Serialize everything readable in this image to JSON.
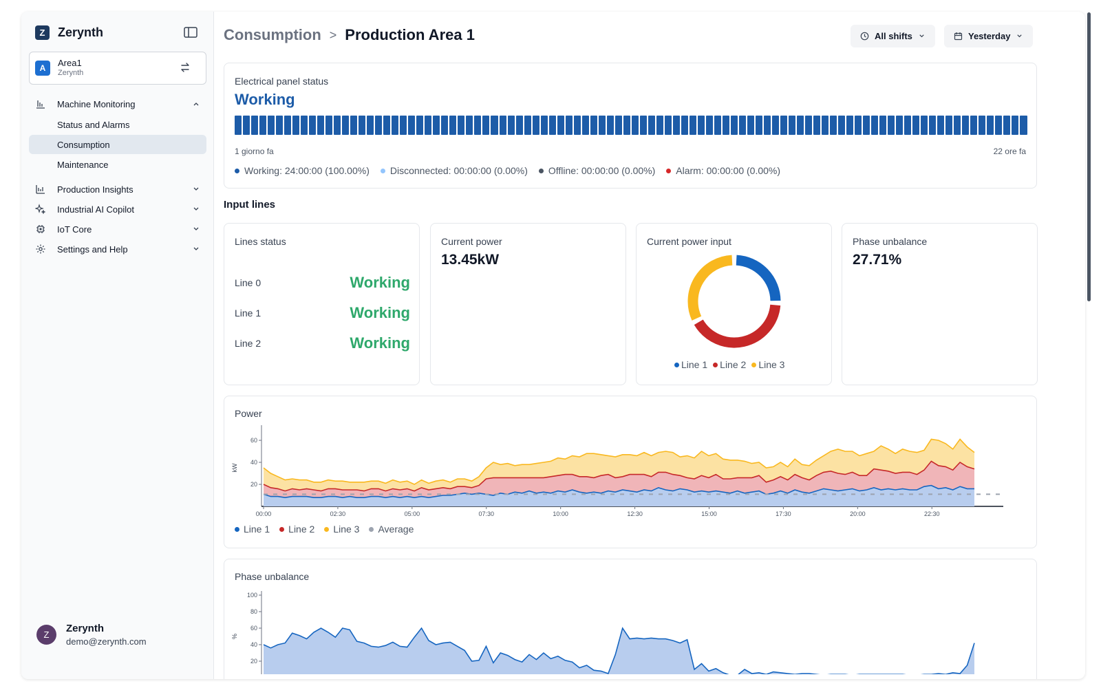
{
  "app": {
    "name": "Zerynth",
    "brand_letter": "Z"
  },
  "area": {
    "avatar": "A",
    "name": "Area1",
    "subtitle": "Zerynth"
  },
  "nav": {
    "machine_monitoring": "Machine Monitoring",
    "status_alarms": "Status and Alarms",
    "consumption": "Consumption",
    "maintenance": "Maintenance",
    "production_insights": "Production Insights",
    "industrial_ai": "Industrial AI Copilot",
    "iot_core": "IoT Core",
    "settings_help": "Settings and Help"
  },
  "user": {
    "initial": "Z",
    "name": "Zerynth",
    "email": "demo@zerynth.com"
  },
  "breadcrumb": {
    "parent": "Consumption",
    "separator": ">",
    "current": "Production Area 1"
  },
  "filters": {
    "shifts": "All shifts",
    "date": "Yesterday"
  },
  "panel": {
    "title": "Electrical panel status",
    "status": "Working",
    "from": "1 giorno fa",
    "to": "22 ore fa",
    "legend": [
      {
        "label": "Working: 24:00:00 (100.00%)",
        "color": "#1d5ca8"
      },
      {
        "label": "Disconnected: 00:00:00 (0.00%)",
        "color": "#93c5fd"
      },
      {
        "label": "Offline: 00:00:00 (0.00%)",
        "color": "#4b5563"
      },
      {
        "label": "Alarm: 00:00:00 (0.00%)",
        "color": "#d62728"
      }
    ]
  },
  "input_lines": {
    "title": "Input lines",
    "lines_status": {
      "title": "Lines status",
      "rows": [
        {
          "name": "Line 0",
          "status": "Working"
        },
        {
          "name": "Line 1",
          "status": "Working"
        },
        {
          "name": "Line 2",
          "status": "Working"
        }
      ]
    },
    "current_power": {
      "title": "Current power",
      "value": "13.45kW"
    },
    "current_power_input": {
      "title": "Current power input"
    },
    "phase_unbalance": {
      "title": "Phase unbalance",
      "value": "27.71%"
    }
  },
  "colors": {
    "line1": "#1565c0",
    "line2": "#c62828",
    "line3": "#f9b81f",
    "average": "#9ca3af"
  },
  "chart_data": [
    {
      "type": "pie",
      "title": "Current power input",
      "categories": [
        "Line 1",
        "Line 2",
        "Line 3"
      ],
      "values": [
        25.6,
        41.8,
        32.6
      ],
      "colors": [
        "#1565c0",
        "#c62828",
        "#f9b81f"
      ],
      "donut": true
    },
    {
      "type": "area",
      "title": "Power",
      "ylabel": "kW",
      "ylim": [
        0,
        70
      ],
      "yticks": [
        20,
        40,
        60
      ],
      "xticks": [
        "00:00",
        "02:30",
        "05:00",
        "07:30",
        "10:00",
        "12:30",
        "15:00",
        "17:30",
        "20:00",
        "22:30"
      ],
      "stacked": true,
      "series": [
        {
          "name": "Line 1",
          "color": "#1565c0",
          "values": [
            11,
            9,
            9,
            8,
            9,
            9,
            9,
            8,
            8,
            9,
            9,
            8,
            9,
            8,
            8,
            9,
            9,
            8,
            9,
            8,
            9,
            8,
            9,
            8,
            9,
            10,
            10,
            11,
            12,
            11,
            12,
            11,
            10,
            12,
            11,
            13,
            12,
            14,
            12,
            13,
            12,
            14,
            13,
            15,
            13,
            12,
            13,
            12,
            14,
            13,
            15,
            14,
            13,
            15,
            14,
            17,
            15,
            14,
            16,
            15,
            13,
            14,
            13,
            14,
            13,
            12,
            14,
            12,
            13,
            14,
            11,
            12,
            14,
            12,
            15,
            13,
            12,
            14,
            16,
            15,
            14,
            15,
            16,
            14,
            15,
            17,
            15,
            16,
            15,
            16,
            15,
            15,
            18,
            19,
            16,
            17,
            15,
            18,
            16,
            16
          ]
        },
        {
          "name": "Line 2",
          "color": "#c62828",
          "values": [
            9,
            8,
            7,
            6,
            7,
            6,
            7,
            7,
            6,
            7,
            7,
            7,
            6,
            7,
            6,
            7,
            7,
            6,
            7,
            7,
            7,
            6,
            8,
            7,
            7,
            7,
            6,
            7,
            6,
            6,
            7,
            14,
            16,
            14,
            15,
            13,
            14,
            12,
            14,
            13,
            15,
            14,
            16,
            14,
            14,
            15,
            13,
            16,
            15,
            13,
            12,
            15,
            16,
            14,
            13,
            14,
            16,
            15,
            12,
            11,
            12,
            14,
            13,
            15,
            12,
            13,
            12,
            14,
            13,
            14,
            11,
            12,
            13,
            12,
            14,
            13,
            12,
            14,
            15,
            17,
            16,
            14,
            15,
            14,
            13,
            17,
            18,
            16,
            15,
            15,
            16,
            14,
            15,
            22,
            21,
            19,
            18,
            22,
            20,
            18
          ]
        },
        {
          "name": "Line 3",
          "color": "#f9b81f",
          "values": [
            15,
            13,
            11,
            10,
            9,
            9,
            8,
            7,
            8,
            8,
            7,
            8,
            7,
            7,
            8,
            7,
            7,
            7,
            8,
            7,
            7,
            6,
            7,
            6,
            7,
            7,
            6,
            7,
            7,
            6,
            8,
            10,
            14,
            12,
            13,
            11,
            12,
            12,
            13,
            14,
            14,
            16,
            14,
            17,
            18,
            21,
            22,
            19,
            17,
            19,
            20,
            18,
            17,
            20,
            19,
            18,
            19,
            20,
            17,
            20,
            19,
            22,
            20,
            19,
            18,
            17,
            16,
            15,
            13,
            12,
            13,
            12,
            13,
            12,
            14,
            12,
            13,
            14,
            15,
            18,
            22,
            21,
            19,
            18,
            20,
            16,
            22,
            20,
            18,
            21,
            19,
            20,
            18,
            20,
            23,
            21,
            19,
            21,
            18,
            15
          ]
        },
        {
          "name": "Average",
          "color": "#9ca3af",
          "values": [
            11,
            11,
            11,
            11,
            11,
            11,
            11,
            11,
            11,
            11,
            11,
            11,
            11,
            11,
            11,
            11,
            11,
            11,
            11,
            11,
            11,
            11,
            11,
            11,
            11,
            11,
            11,
            11,
            11,
            11,
            11,
            11,
            11,
            11,
            11,
            11,
            11,
            11,
            11,
            11,
            11,
            11,
            11,
            11,
            11,
            11,
            11,
            11,
            11,
            11,
            11,
            11,
            11,
            11,
            11,
            11,
            11,
            11,
            11,
            11,
            11,
            11,
            11,
            11,
            11,
            11,
            11,
            11,
            11,
            11,
            11,
            11,
            11,
            11,
            11,
            11,
            11,
            11,
            11,
            11,
            11,
            11,
            11,
            11,
            11,
            11,
            11,
            11,
            11,
            11,
            11,
            11,
            11,
            11,
            11,
            11,
            11,
            11,
            11,
            11
          ]
        }
      ]
    },
    {
      "type": "area",
      "title": "Phase unbalance",
      "ylabel": "%",
      "ylim": [
        0,
        100
      ],
      "yticks": [
        20,
        40,
        60,
        80,
        100
      ],
      "series": [
        {
          "name": "Phase unbalance",
          "color": "#1565c0",
          "values": [
            40,
            36,
            40,
            42,
            54,
            51,
            47,
            55,
            60,
            55,
            49,
            60,
            58,
            44,
            42,
            38,
            37,
            39,
            43,
            38,
            37,
            49,
            60,
            45,
            40,
            42,
            43,
            38,
            33,
            20,
            21,
            38,
            18,
            30,
            27,
            22,
            19,
            28,
            22,
            30,
            23,
            26,
            21,
            19,
            12,
            15,
            9,
            8,
            5,
            28,
            60,
            47,
            48,
            47,
            48,
            47,
            47,
            45,
            42,
            46,
            10,
            17,
            8,
            11,
            6,
            3,
            3,
            10,
            5,
            6,
            4,
            7,
            6,
            5,
            4,
            5,
            5,
            4,
            3,
            4,
            4,
            4,
            3,
            4,
            4,
            4,
            4,
            4,
            4,
            4,
            3,
            3,
            4,
            4,
            5,
            4,
            6,
            5,
            15,
            42
          ]
        }
      ]
    }
  ]
}
